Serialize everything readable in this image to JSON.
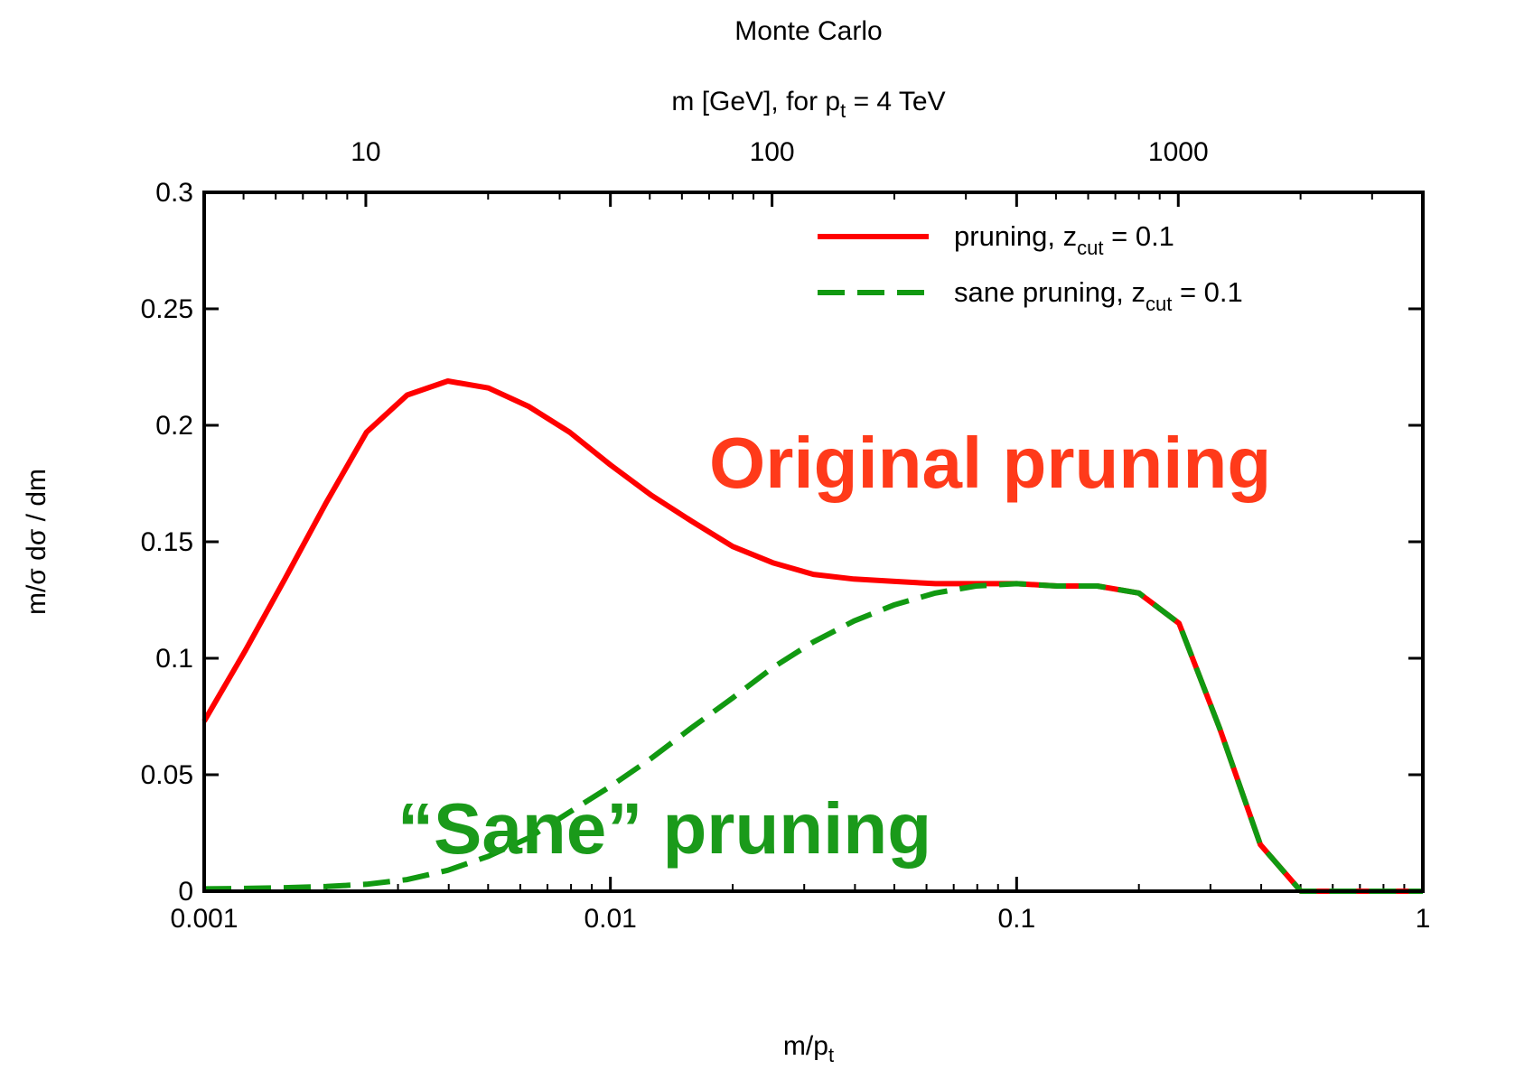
{
  "chart_data": {
    "type": "line",
    "title": "Monte Carlo",
    "xlabel": "m/pt",
    "ylabel": "m/σ dσ / dm",
    "top_axis_label": "m [GeV], for pt = 4 TeV",
    "xscale": "log",
    "xlim": [
      0.001,
      1
    ],
    "ylim": [
      0,
      0.3
    ],
    "x_ticks": [
      "0.001",
      "0.01",
      "0.1",
      "1"
    ],
    "y_ticks": [
      "0",
      "0.05",
      "0.1",
      "0.15",
      "0.2",
      "0.25",
      "0.3"
    ],
    "top_ticks": [
      "10",
      "100",
      "1000"
    ],
    "top_tick_values": [
      10,
      100,
      1000
    ],
    "top_axis_pt": 4000,
    "legend_position": "top-right",
    "annotations": [
      {
        "text": "Original pruning",
        "color": "#ff3a1a"
      },
      {
        "text": "“Sane”  pruning",
        "color": "#1a9a1a"
      }
    ],
    "series": [
      {
        "name": "pruning, zcut = 0.1",
        "legend_main": "pruning, z",
        "legend_sub": "cut",
        "legend_tail": " = 0.1",
        "color": "#ff0000",
        "dash": "solid",
        "x": [
          0.001,
          0.00126,
          0.00158,
          0.002,
          0.00251,
          0.00316,
          0.00398,
          0.00501,
          0.00631,
          0.00794,
          0.01,
          0.0126,
          0.0158,
          0.02,
          0.0251,
          0.0316,
          0.0398,
          0.0501,
          0.0631,
          0.0794,
          0.1,
          0.126,
          0.158,
          0.2,
          0.251,
          0.316,
          0.398,
          0.501,
          0.631,
          0.794,
          1.0
        ],
        "y": [
          0.073,
          0.103,
          0.134,
          0.167,
          0.197,
          0.213,
          0.219,
          0.216,
          0.208,
          0.197,
          0.183,
          0.17,
          0.159,
          0.148,
          0.141,
          0.136,
          0.134,
          0.133,
          0.132,
          0.132,
          0.132,
          0.131,
          0.131,
          0.128,
          0.115,
          0.07,
          0.02,
          0.0,
          0.0,
          0.0,
          0.0
        ]
      },
      {
        "name": "sane pruning, zcut = 0.1",
        "legend_main": "sane pruning, z",
        "legend_sub": "cut",
        "legend_tail": " = 0.1",
        "color": "#119911",
        "dash": "dashed",
        "x": [
          0.001,
          0.00126,
          0.00158,
          0.002,
          0.00251,
          0.00316,
          0.00398,
          0.00501,
          0.00631,
          0.00794,
          0.01,
          0.0126,
          0.0158,
          0.02,
          0.0251,
          0.0316,
          0.0398,
          0.0501,
          0.0631,
          0.0794,
          0.1,
          0.126,
          0.158,
          0.2,
          0.251,
          0.316,
          0.398,
          0.501,
          0.631,
          0.794,
          1.0
        ],
        "y": [
          0.001,
          0.0012,
          0.0015,
          0.002,
          0.003,
          0.005,
          0.009,
          0.015,
          0.023,
          0.034,
          0.045,
          0.057,
          0.07,
          0.083,
          0.096,
          0.107,
          0.116,
          0.123,
          0.128,
          0.131,
          0.132,
          0.131,
          0.131,
          0.128,
          0.115,
          0.07,
          0.02,
          0.0,
          0.0,
          0.0,
          0.0
        ]
      }
    ]
  }
}
